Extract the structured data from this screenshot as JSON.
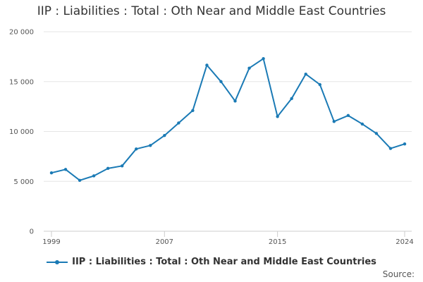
{
  "chart_data": {
    "type": "line",
    "title": "IIP : Liabilities : Total : Oth Near and Middle East Countries",
    "xlabel": "",
    "ylabel": "",
    "x": [
      1999,
      2000,
      2001,
      2002,
      2003,
      2004,
      2005,
      2006,
      2007,
      2008,
      2009,
      2010,
      2011,
      2012,
      2013,
      2014,
      2015,
      2016,
      2017,
      2018,
      2019,
      2020,
      2021,
      2022,
      2023,
      2024
    ],
    "series": [
      {
        "name": "IIP : Liabilities : Total : Oth Near and Middle East Countries",
        "values": [
          5850,
          6200,
          5100,
          5550,
          6300,
          6550,
          8250,
          8600,
          9600,
          10850,
          12100,
          16650,
          15000,
          13050,
          16350,
          17300,
          11500,
          13300,
          15750,
          14700,
          11000,
          11600,
          10750,
          9800,
          8300,
          8750
        ]
      }
    ],
    "xlim": [
      1999,
      2024
    ],
    "ylim": [
      0,
      20000
    ],
    "x_ticks": [
      1999,
      2007,
      2015,
      2024
    ],
    "y_ticks": [
      0,
      5000,
      10000,
      15000,
      20000
    ],
    "x_tick_labels": [
      "1999",
      "2007",
      "2015",
      "2024"
    ],
    "y_tick_labels": [
      "0",
      "5 000",
      "10 000",
      "15 000",
      "20 000"
    ],
    "grid": true,
    "legend_position": "bottom",
    "colors": {
      "series": "#1a7ab5",
      "grid": "#e6e6e6",
      "axis": "#cccccc"
    }
  },
  "footer": {
    "source_label": "Source:"
  }
}
